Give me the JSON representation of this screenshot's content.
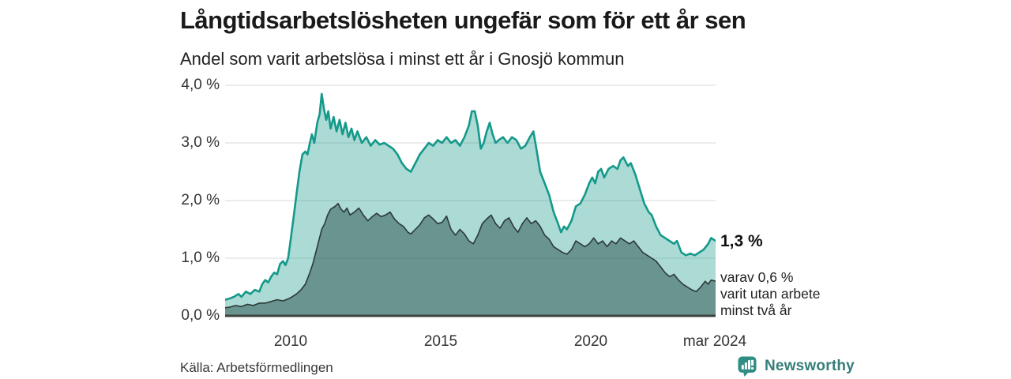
{
  "title": "Långtidsarbetslösheten ungefär som för ett år sen",
  "subtitle": "Andel som varit arbetslösa i minst ett år i Gnosjö kommun",
  "source": "Källa: Arbetsförmedlingen",
  "logo": {
    "text": "Newsworthy",
    "icon": "bar-chart-speech-bubble-icon"
  },
  "annotations": {
    "latest_total": "1,3 %",
    "breakdown_lines": [
      "varav 0,6 %",
      "varit utan arbete",
      "minst två år"
    ]
  },
  "colors": {
    "accent_teal_line": "#14998a",
    "light_area_fill": "rgba(18,150,136,0.35)",
    "dark_area_fill": "rgba(32,70,64,0.47)",
    "dark_line": "#2c3a37",
    "axis_line": "#3a423f",
    "grid_line": "#e1e1e1",
    "logo_teal": "#2f8e84",
    "text_dark": "#1a1a1a"
  },
  "chart_data": {
    "type": "area",
    "title": "Långtidsarbetslösheten ungefär som för ett år sen",
    "subtitle": "Andel som varit arbetslösa i minst ett år i Gnosjö kommun",
    "xlabel": "",
    "ylabel": "",
    "grid": true,
    "legend_position": "none",
    "x_domain": [
      2007.75,
      2024.25
    ],
    "y_domain": [
      0,
      4
    ],
    "yticks": [
      {
        "value": 4,
        "label": "4,0 %"
      },
      {
        "value": 3,
        "label": "3,0 %"
      },
      {
        "value": 2,
        "label": "2,0 %"
      },
      {
        "value": 1,
        "label": "1,0 %"
      },
      {
        "value": 0,
        "label": "0,0 %"
      }
    ],
    "xticks": [
      {
        "value": 2010,
        "label": "2010"
      },
      {
        "value": 2015,
        "label": "2015"
      },
      {
        "value": 2020,
        "label": "2020"
      },
      {
        "value": 2024.25,
        "label": "mar 2024"
      }
    ],
    "series": [
      {
        "name": "Arbetslösa minst ett år (totalt)",
        "latest_value": 1.3,
        "latest_label": "1,3 %",
        "points": [
          [
            2007.75,
            0.28
          ],
          [
            2007.9,
            0.3
          ],
          [
            2008.05,
            0.33
          ],
          [
            2008.2,
            0.38
          ],
          [
            2008.3,
            0.33
          ],
          [
            2008.45,
            0.42
          ],
          [
            2008.6,
            0.38
          ],
          [
            2008.75,
            0.45
          ],
          [
            2008.9,
            0.42
          ],
          [
            2009.0,
            0.55
          ],
          [
            2009.1,
            0.62
          ],
          [
            2009.2,
            0.58
          ],
          [
            2009.3,
            0.68
          ],
          [
            2009.4,
            0.75
          ],
          [
            2009.5,
            0.72
          ],
          [
            2009.6,
            0.9
          ],
          [
            2009.7,
            0.95
          ],
          [
            2009.78,
            0.88
          ],
          [
            2009.87,
            1.0
          ],
          [
            2009.95,
            1.3
          ],
          [
            2010.05,
            1.7
          ],
          [
            2010.15,
            2.1
          ],
          [
            2010.25,
            2.5
          ],
          [
            2010.35,
            2.8
          ],
          [
            2010.45,
            2.85
          ],
          [
            2010.52,
            2.8
          ],
          [
            2010.6,
            3.0
          ],
          [
            2010.67,
            3.15
          ],
          [
            2010.75,
            3.0
          ],
          [
            2010.85,
            3.35
          ],
          [
            2010.93,
            3.5
          ],
          [
            2011.0,
            3.85
          ],
          [
            2011.07,
            3.6
          ],
          [
            2011.15,
            3.4
          ],
          [
            2011.22,
            3.55
          ],
          [
            2011.3,
            3.25
          ],
          [
            2011.4,
            3.45
          ],
          [
            2011.5,
            3.2
          ],
          [
            2011.6,
            3.4
          ],
          [
            2011.7,
            3.15
          ],
          [
            2011.8,
            3.35
          ],
          [
            2011.9,
            3.1
          ],
          [
            2012.0,
            3.25
          ],
          [
            2012.1,
            3.05
          ],
          [
            2012.2,
            3.2
          ],
          [
            2012.35,
            3.0
          ],
          [
            2012.5,
            3.1
          ],
          [
            2012.65,
            2.95
          ],
          [
            2012.8,
            3.05
          ],
          [
            2012.95,
            2.97
          ],
          [
            2013.1,
            3.0
          ],
          [
            2013.25,
            2.95
          ],
          [
            2013.4,
            2.9
          ],
          [
            2013.55,
            2.8
          ],
          [
            2013.7,
            2.65
          ],
          [
            2013.85,
            2.55
          ],
          [
            2014.0,
            2.5
          ],
          [
            2014.15,
            2.65
          ],
          [
            2014.3,
            2.8
          ],
          [
            2014.45,
            2.9
          ],
          [
            2014.6,
            3.0
          ],
          [
            2014.75,
            2.95
          ],
          [
            2014.9,
            3.05
          ],
          [
            2015.05,
            3.0
          ],
          [
            2015.2,
            3.1
          ],
          [
            2015.35,
            3.0
          ],
          [
            2015.5,
            3.05
          ],
          [
            2015.65,
            2.95
          ],
          [
            2015.8,
            3.1
          ],
          [
            2015.95,
            3.3
          ],
          [
            2016.05,
            3.55
          ],
          [
            2016.15,
            3.55
          ],
          [
            2016.25,
            3.3
          ],
          [
            2016.35,
            2.9
          ],
          [
            2016.45,
            3.0
          ],
          [
            2016.55,
            3.2
          ],
          [
            2016.65,
            3.35
          ],
          [
            2016.75,
            3.15
          ],
          [
            2016.85,
            3.0
          ],
          [
            2016.95,
            3.05
          ],
          [
            2017.1,
            3.1
          ],
          [
            2017.25,
            3.0
          ],
          [
            2017.4,
            3.1
          ],
          [
            2017.55,
            3.05
          ],
          [
            2017.7,
            2.9
          ],
          [
            2017.85,
            2.95
          ],
          [
            2018.0,
            3.1
          ],
          [
            2018.12,
            3.2
          ],
          [
            2018.22,
            2.9
          ],
          [
            2018.35,
            2.5
          ],
          [
            2018.5,
            2.3
          ],
          [
            2018.65,
            2.1
          ],
          [
            2018.8,
            1.8
          ],
          [
            2018.95,
            1.6
          ],
          [
            2019.05,
            1.45
          ],
          [
            2019.15,
            1.55
          ],
          [
            2019.25,
            1.5
          ],
          [
            2019.4,
            1.65
          ],
          [
            2019.55,
            1.9
          ],
          [
            2019.7,
            1.95
          ],
          [
            2019.85,
            2.1
          ],
          [
            2020.0,
            2.3
          ],
          [
            2020.1,
            2.4
          ],
          [
            2020.2,
            2.3
          ],
          [
            2020.3,
            2.5
          ],
          [
            2020.4,
            2.55
          ],
          [
            2020.5,
            2.4
          ],
          [
            2020.65,
            2.55
          ],
          [
            2020.8,
            2.6
          ],
          [
            2020.95,
            2.55
          ],
          [
            2021.05,
            2.7
          ],
          [
            2021.15,
            2.75
          ],
          [
            2021.3,
            2.6
          ],
          [
            2021.4,
            2.65
          ],
          [
            2021.55,
            2.45
          ],
          [
            2021.7,
            2.2
          ],
          [
            2021.85,
            1.95
          ],
          [
            2022.0,
            1.8
          ],
          [
            2022.1,
            1.75
          ],
          [
            2022.25,
            1.55
          ],
          [
            2022.4,
            1.4
          ],
          [
            2022.55,
            1.35
          ],
          [
            2022.7,
            1.3
          ],
          [
            2022.85,
            1.25
          ],
          [
            2022.95,
            1.3
          ],
          [
            2023.1,
            1.1
          ],
          [
            2023.25,
            1.05
          ],
          [
            2023.4,
            1.08
          ],
          [
            2023.55,
            1.05
          ],
          [
            2023.7,
            1.1
          ],
          [
            2023.85,
            1.15
          ],
          [
            2024.0,
            1.25
          ],
          [
            2024.1,
            1.35
          ],
          [
            2024.25,
            1.3
          ]
        ]
      },
      {
        "name": "Utan arbete minst två år",
        "latest_value": 0.6,
        "latest_label": "0,6 %",
        "points": [
          [
            2007.75,
            0.14
          ],
          [
            2007.9,
            0.15
          ],
          [
            2008.1,
            0.18
          ],
          [
            2008.3,
            0.16
          ],
          [
            2008.5,
            0.2
          ],
          [
            2008.7,
            0.18
          ],
          [
            2008.9,
            0.22
          ],
          [
            2009.1,
            0.22
          ],
          [
            2009.3,
            0.25
          ],
          [
            2009.5,
            0.28
          ],
          [
            2009.7,
            0.26
          ],
          [
            2009.9,
            0.3
          ],
          [
            2010.0,
            0.33
          ],
          [
            2010.15,
            0.38
          ],
          [
            2010.3,
            0.45
          ],
          [
            2010.45,
            0.55
          ],
          [
            2010.6,
            0.75
          ],
          [
            2010.7,
            0.9
          ],
          [
            2010.8,
            1.1
          ],
          [
            2010.9,
            1.3
          ],
          [
            2011.0,
            1.5
          ],
          [
            2011.1,
            1.6
          ],
          [
            2011.2,
            1.75
          ],
          [
            2011.3,
            1.85
          ],
          [
            2011.45,
            1.9
          ],
          [
            2011.55,
            1.95
          ],
          [
            2011.65,
            1.85
          ],
          [
            2011.75,
            1.8
          ],
          [
            2011.85,
            1.87
          ],
          [
            2011.95,
            1.75
          ],
          [
            2012.1,
            1.8
          ],
          [
            2012.25,
            1.87
          ],
          [
            2012.4,
            1.75
          ],
          [
            2012.55,
            1.65
          ],
          [
            2012.7,
            1.72
          ],
          [
            2012.85,
            1.78
          ],
          [
            2013.0,
            1.72
          ],
          [
            2013.15,
            1.75
          ],
          [
            2013.3,
            1.8
          ],
          [
            2013.45,
            1.68
          ],
          [
            2013.6,
            1.6
          ],
          [
            2013.75,
            1.55
          ],
          [
            2013.9,
            1.45
          ],
          [
            2014.0,
            1.42
          ],
          [
            2014.15,
            1.5
          ],
          [
            2014.3,
            1.58
          ],
          [
            2014.45,
            1.7
          ],
          [
            2014.6,
            1.75
          ],
          [
            2014.75,
            1.68
          ],
          [
            2014.9,
            1.6
          ],
          [
            2015.05,
            1.62
          ],
          [
            2015.2,
            1.73
          ],
          [
            2015.35,
            1.5
          ],
          [
            2015.5,
            1.4
          ],
          [
            2015.65,
            1.5
          ],
          [
            2015.8,
            1.42
          ],
          [
            2015.95,
            1.3
          ],
          [
            2016.1,
            1.25
          ],
          [
            2016.25,
            1.4
          ],
          [
            2016.4,
            1.6
          ],
          [
            2016.55,
            1.68
          ],
          [
            2016.7,
            1.75
          ],
          [
            2016.85,
            1.6
          ],
          [
            2017.0,
            1.52
          ],
          [
            2017.15,
            1.65
          ],
          [
            2017.3,
            1.7
          ],
          [
            2017.45,
            1.55
          ],
          [
            2017.6,
            1.45
          ],
          [
            2017.75,
            1.6
          ],
          [
            2017.9,
            1.7
          ],
          [
            2018.05,
            1.6
          ],
          [
            2018.2,
            1.65
          ],
          [
            2018.35,
            1.55
          ],
          [
            2018.5,
            1.4
          ],
          [
            2018.65,
            1.33
          ],
          [
            2018.8,
            1.2
          ],
          [
            2018.95,
            1.15
          ],
          [
            2019.1,
            1.1
          ],
          [
            2019.25,
            1.07
          ],
          [
            2019.4,
            1.15
          ],
          [
            2019.55,
            1.3
          ],
          [
            2019.7,
            1.25
          ],
          [
            2019.85,
            1.2
          ],
          [
            2020.0,
            1.25
          ],
          [
            2020.15,
            1.35
          ],
          [
            2020.3,
            1.25
          ],
          [
            2020.45,
            1.3
          ],
          [
            2020.6,
            1.2
          ],
          [
            2020.75,
            1.3
          ],
          [
            2020.9,
            1.25
          ],
          [
            2021.05,
            1.35
          ],
          [
            2021.2,
            1.3
          ],
          [
            2021.35,
            1.25
          ],
          [
            2021.5,
            1.3
          ],
          [
            2021.65,
            1.2
          ],
          [
            2021.8,
            1.1
          ],
          [
            2021.95,
            1.05
          ],
          [
            2022.1,
            1.0
          ],
          [
            2022.25,
            0.95
          ],
          [
            2022.4,
            0.85
          ],
          [
            2022.55,
            0.75
          ],
          [
            2022.7,
            0.68
          ],
          [
            2022.85,
            0.72
          ],
          [
            2023.0,
            0.62
          ],
          [
            2023.15,
            0.55
          ],
          [
            2023.3,
            0.5
          ],
          [
            2023.45,
            0.45
          ],
          [
            2023.6,
            0.42
          ],
          [
            2023.75,
            0.5
          ],
          [
            2023.9,
            0.6
          ],
          [
            2024.0,
            0.55
          ],
          [
            2024.1,
            0.62
          ],
          [
            2024.25,
            0.6
          ]
        ]
      }
    ]
  }
}
